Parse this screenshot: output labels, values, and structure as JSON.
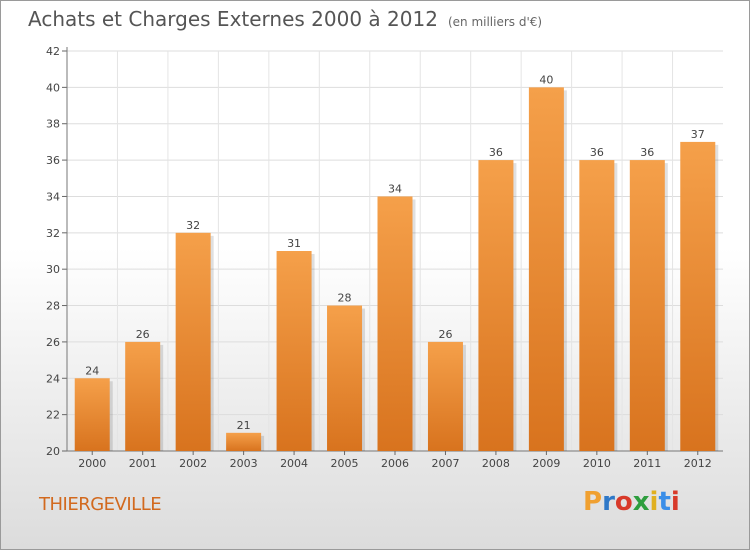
{
  "chart_data": {
    "type": "bar",
    "title": "Achats et Charges Externes 2000 à 2012",
    "subtitle": "(en milliers d'€)",
    "categories": [
      "2000",
      "2001",
      "2002",
      "2003",
      "2004",
      "2005",
      "2006",
      "2007",
      "2008",
      "2009",
      "2010",
      "2011",
      "2012"
    ],
    "values": [
      24,
      26,
      32,
      21,
      31,
      28,
      34,
      26,
      36,
      40,
      36,
      36,
      37
    ],
    "ylim": [
      20,
      42
    ],
    "yticks": [
      20,
      22,
      24,
      26,
      28,
      30,
      32,
      34,
      36,
      38,
      40,
      42
    ],
    "grid": true,
    "bar_color_top": "#f5a04a",
    "bar_color_bottom": "#d8731e"
  },
  "location": "THIERGEVILLE",
  "logo": {
    "text": "Proxiti",
    "letter_colors": [
      "#f0a030",
      "#2e78c8",
      "#d83a2a",
      "#2e9e3e",
      "#e0b020",
      "#3a8ee8",
      "#d83a2a"
    ]
  }
}
